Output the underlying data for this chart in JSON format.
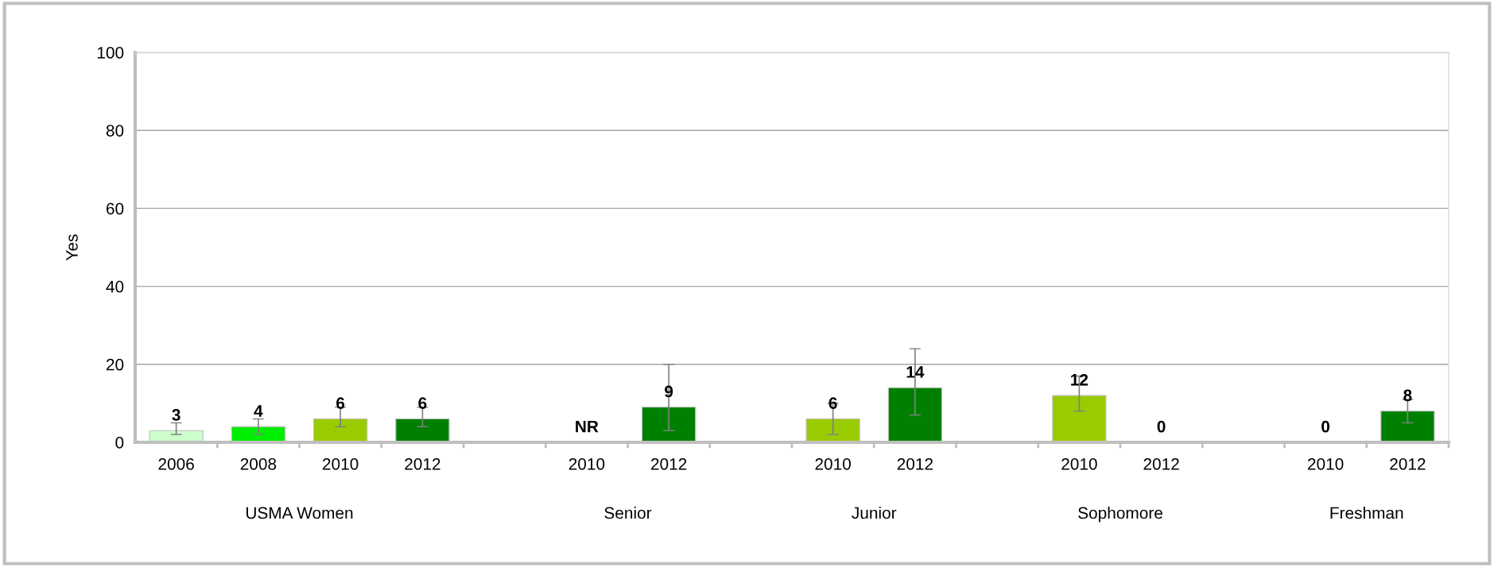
{
  "chart_data": {
    "type": "bar",
    "ylabel": "Yes",
    "categories": [
      "2006",
      "2008",
      "2010",
      "2012",
      null,
      "2010",
      "2012",
      null,
      "2010",
      "2012",
      null,
      "2010",
      "2012",
      null,
      "2010",
      "2012"
    ],
    "values": [
      3,
      4,
      6,
      6,
      null,
      null,
      9,
      null,
      6,
      14,
      null,
      12,
      0,
      null,
      0,
      8
    ],
    "colors": [
      "#ccffcc",
      "#00ee00",
      "#99cc00",
      "#008000",
      null,
      "#99cc00",
      "#008000",
      null,
      "#99cc00",
      "#008000",
      null,
      "#99cc00",
      "#008000",
      null,
      "#99cc00",
      "#008000"
    ],
    "errors": [
      [
        2,
        5
      ],
      [
        2,
        6
      ],
      [
        4,
        9
      ],
      [
        4,
        9
      ],
      null,
      null,
      [
        3,
        20
      ],
      null,
      [
        2,
        10
      ],
      [
        7,
        24
      ],
      null,
      [
        8,
        17
      ],
      null,
      null,
      null,
      [
        5,
        11
      ]
    ],
    "value_labels": [
      "3",
      "4",
      "6",
      "6",
      null,
      "NR",
      "9",
      null,
      "6",
      "14",
      null,
      "12",
      "0",
      null,
      "0",
      "8"
    ],
    "annotations": [
      "USMA Women",
      "Senior",
      "Junior",
      "Sophomore",
      "Freshman"
    ],
    "ylim": [
      0,
      100
    ],
    "yticks": [
      0,
      20,
      40,
      60,
      80,
      100
    ],
    "grid": "y"
  }
}
